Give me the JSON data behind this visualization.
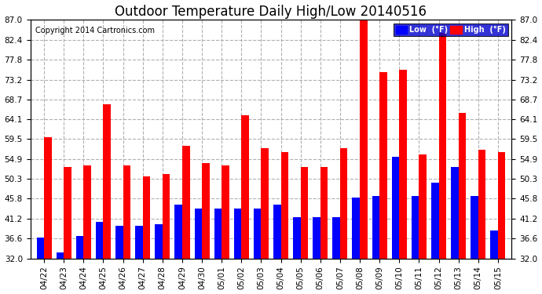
{
  "title": "Outdoor Temperature Daily High/Low 20140516",
  "copyright": "Copyright 2014 Cartronics.com",
  "dates": [
    "04/22",
    "04/23",
    "04/24",
    "04/25",
    "04/26",
    "04/27",
    "04/28",
    "04/29",
    "04/30",
    "05/01",
    "05/02",
    "05/03",
    "05/04",
    "05/05",
    "05/06",
    "05/07",
    "05/08",
    "05/09",
    "05/10",
    "05/11",
    "05/12",
    "05/13",
    "05/14",
    "05/15"
  ],
  "highs": [
    60.0,
    53.0,
    53.5,
    67.5,
    53.5,
    51.0,
    51.5,
    58.0,
    54.0,
    53.5,
    65.0,
    57.5,
    56.5,
    53.0,
    53.0,
    57.5,
    87.0,
    75.0,
    75.5,
    56.0,
    84.0,
    65.5,
    57.0,
    56.5
  ],
  "lows": [
    36.8,
    33.5,
    37.2,
    40.5,
    39.5,
    39.5,
    40.0,
    44.5,
    43.5,
    43.5,
    43.5,
    43.5,
    44.5,
    41.5,
    41.5,
    41.5,
    46.0,
    46.5,
    55.5,
    46.5,
    49.5,
    53.0,
    46.5,
    38.5
  ],
  "y_ticks": [
    32.0,
    36.6,
    41.2,
    45.8,
    50.3,
    54.9,
    59.5,
    64.1,
    68.7,
    73.2,
    77.8,
    82.4,
    87.0
  ],
  "y_tick_labels": [
    "32.0",
    "36.6",
    "41.2",
    "45.8",
    "50.3",
    "54.9",
    "59.5",
    "64.1",
    "68.7",
    "73.2",
    "77.8",
    "82.4",
    "87.0"
  ],
  "ylim": [
    32.0,
    87.0
  ],
  "high_color": "#ff0000",
  "low_color": "#0000ff",
  "bg_color": "#ffffff",
  "plot_bg_color": "#ffffff",
  "grid_color": "#b0b0b0",
  "title_fontsize": 12,
  "copyright_fontsize": 7,
  "tick_fontsize": 7.5,
  "bar_width": 0.38,
  "legend_low_label": "Low  (°F)",
  "legend_high_label": "High  (°F)"
}
